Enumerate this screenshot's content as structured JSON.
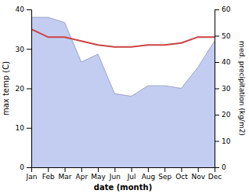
{
  "chart_data": {
    "type": "line",
    "categories": [
      "Jan",
      "Feb",
      "Mar",
      "Apr",
      "May",
      "Jun",
      "Jul",
      "Aug",
      "Sep",
      "Oct",
      "Nov",
      "Dec"
    ],
    "xlabel": "date (month)",
    "ylabel": "max temp (C)",
    "y2label": "med. precipitation (kg/m2)",
    "ylim": [
      0,
      40
    ],
    "yticks": [
      0,
      10,
      20,
      30,
      40
    ],
    "y2lim": [
      0,
      60
    ],
    "y2ticks": [
      0,
      10,
      20,
      30,
      40,
      50,
      60
    ],
    "series": [
      {
        "type": "area",
        "axis": "y2",
        "color": "#b8c4ee",
        "values": [
          57,
          57,
          55,
          40,
          43,
          28,
          27,
          31,
          31,
          30,
          38,
          48
        ]
      },
      {
        "type": "line",
        "color": "#cc4444",
        "values": [
          35,
          33,
          33,
          32,
          31,
          30.5,
          30.5,
          31,
          31,
          31.5,
          33,
          33
        ]
      }
    ]
  }
}
